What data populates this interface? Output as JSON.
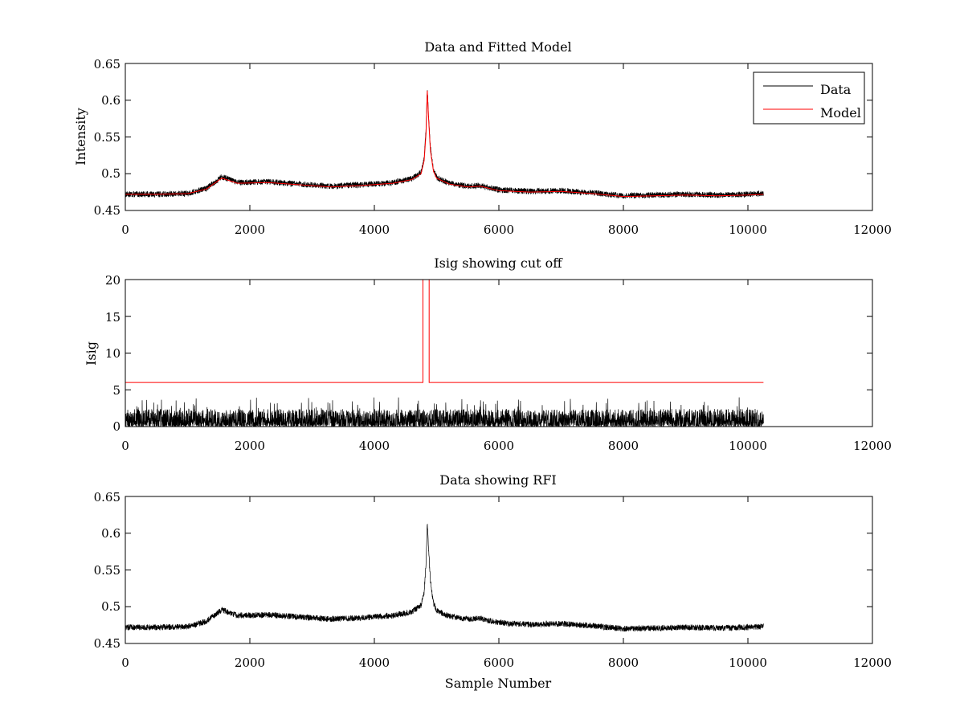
{
  "figure": {
    "background": "#ffffff"
  },
  "colors": {
    "data": "#000000",
    "model": "#ff0000",
    "axes": "#000000"
  },
  "chart_data": [
    {
      "type": "line",
      "title": "Data and Fitted Model",
      "xlabel": "",
      "ylabel": "Intensity",
      "xlim": [
        0,
        12000
      ],
      "ylim": [
        0.45,
        0.65
      ],
      "xticks": [
        0,
        2000,
        4000,
        6000,
        8000,
        10000,
        12000
      ],
      "yticks": [
        0.45,
        0.5,
        0.55,
        0.6,
        0.65
      ],
      "xtick_labels": [
        "0",
        "2000",
        "4000",
        "6000",
        "8000",
        "10000",
        "12000"
      ],
      "ytick_labels": [
        "0.45",
        "0.5",
        "0.55",
        "0.6",
        "0.65"
      ],
      "grid": false,
      "legend": {
        "placement": "top-right",
        "entries": [
          "Data",
          "Model"
        ]
      },
      "series": [
        {
          "name": "Data",
          "color": "#000000",
          "x": [
            0,
            500,
            1000,
            1300,
            1550,
            1800,
            2300,
            2800,
            3300,
            3800,
            4300,
            4600,
            4750,
            4800,
            4830,
            4850,
            4870,
            4900,
            4950,
            5000,
            5200,
            5500,
            5700,
            6000,
            6500,
            7000,
            7500,
            8000,
            8500,
            9000,
            9500,
            10000,
            10250
          ],
          "y": [
            0.472,
            0.472,
            0.473,
            0.48,
            0.496,
            0.488,
            0.489,
            0.486,
            0.483,
            0.485,
            0.488,
            0.493,
            0.502,
            0.52,
            0.56,
            0.615,
            0.58,
            0.535,
            0.505,
            0.495,
            0.487,
            0.483,
            0.484,
            0.478,
            0.476,
            0.477,
            0.474,
            0.47,
            0.471,
            0.472,
            0.471,
            0.472,
            0.473
          ],
          "noise_amplitude": 0.004
        },
        {
          "name": "Model",
          "color": "#ff0000",
          "x": [
            0,
            500,
            1000,
            1300,
            1550,
            1800,
            2300,
            2800,
            3300,
            3800,
            4300,
            4600,
            4750,
            4800,
            4830,
            4850,
            4870,
            4900,
            4950,
            5000,
            5200,
            5500,
            5700,
            6000,
            6500,
            7000,
            7500,
            8000,
            8500,
            9000,
            9500,
            10000,
            10250
          ],
          "y": [
            0.472,
            0.472,
            0.473,
            0.479,
            0.494,
            0.487,
            0.488,
            0.485,
            0.482,
            0.484,
            0.487,
            0.492,
            0.5,
            0.518,
            0.555,
            0.613,
            0.577,
            0.532,
            0.503,
            0.494,
            0.486,
            0.482,
            0.483,
            0.477,
            0.475,
            0.476,
            0.473,
            0.469,
            0.47,
            0.471,
            0.47,
            0.471,
            0.472
          ]
        }
      ]
    },
    {
      "type": "line",
      "title": "Isig showing cut off",
      "xlabel": "",
      "ylabel": "Isig",
      "xlim": [
        0,
        12000
      ],
      "ylim": [
        0,
        20
      ],
      "xticks": [
        0,
        2000,
        4000,
        6000,
        8000,
        10000,
        12000
      ],
      "yticks": [
        0,
        5,
        10,
        15,
        20
      ],
      "xtick_labels": [
        "0",
        "2000",
        "4000",
        "6000",
        "8000",
        "10000",
        "12000"
      ],
      "ytick_labels": [
        "0",
        "5",
        "10",
        "15",
        "20"
      ],
      "grid": false,
      "series": [
        {
          "color": "#000000",
          "x": [
            0,
            10250
          ],
          "y_range": [
            0,
            4
          ],
          "style": "noise"
        },
        {
          "color": "#ff0000",
          "x": [
            0,
            4780,
            4780,
            4880,
            4880,
            10250
          ],
          "y": [
            6,
            6,
            20,
            20,
            6,
            6
          ]
        }
      ]
    },
    {
      "type": "line",
      "title": "Data showing RFI",
      "xlabel": "Sample Number",
      "ylabel": "",
      "xlim": [
        0,
        12000
      ],
      "ylim": [
        0.45,
        0.65
      ],
      "xticks": [
        0,
        2000,
        4000,
        6000,
        8000,
        10000,
        12000
      ],
      "yticks": [
        0.45,
        0.5,
        0.55,
        0.6,
        0.65
      ],
      "xtick_labels": [
        "0",
        "2000",
        "4000",
        "6000",
        "8000",
        "10000",
        "12000"
      ],
      "ytick_labels": [
        "0.45",
        "0.5",
        "0.55",
        "0.6",
        "0.65"
      ],
      "grid": false,
      "series": [
        {
          "color": "#000000",
          "x": [
            0,
            500,
            1000,
            1300,
            1550,
            1800,
            2300,
            2800,
            3300,
            3800,
            4300,
            4600,
            4750,
            4800,
            4830,
            4850,
            4870,
            4900,
            4950,
            5000,
            5200,
            5500,
            5700,
            6000,
            6500,
            7000,
            7500,
            8000,
            8500,
            9000,
            9500,
            10000,
            10250
          ],
          "y": [
            0.472,
            0.472,
            0.473,
            0.48,
            0.496,
            0.488,
            0.489,
            0.486,
            0.483,
            0.485,
            0.488,
            0.493,
            0.502,
            0.52,
            0.56,
            0.615,
            0.58,
            0.535,
            0.505,
            0.495,
            0.487,
            0.483,
            0.484,
            0.478,
            0.476,
            0.477,
            0.474,
            0.47,
            0.471,
            0.472,
            0.471,
            0.472,
            0.473
          ],
          "noise_amplitude": 0.004
        }
      ]
    }
  ]
}
